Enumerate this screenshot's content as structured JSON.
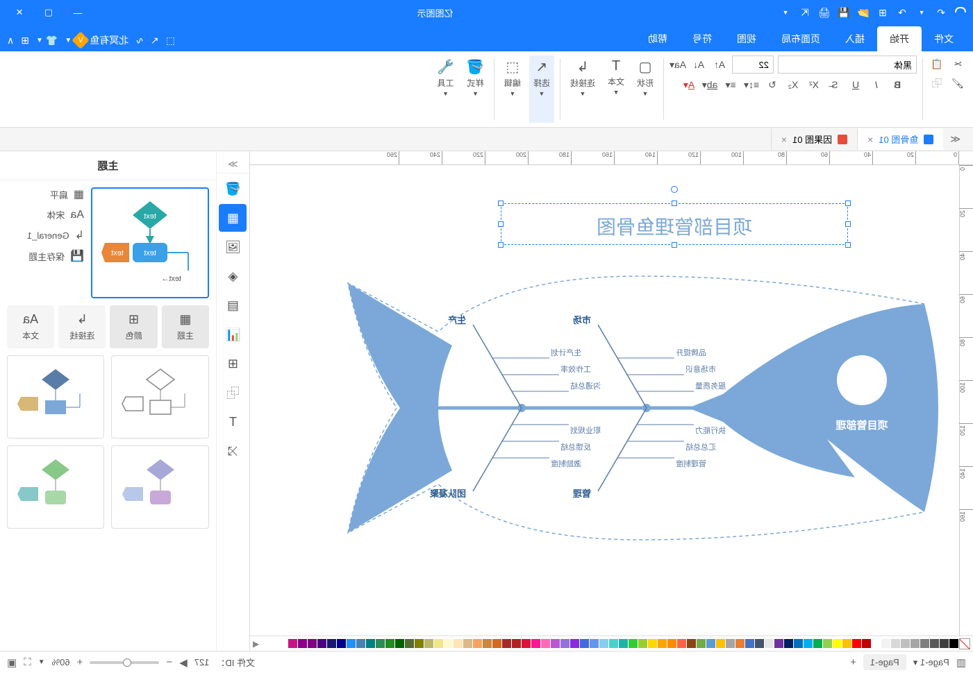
{
  "titlebar": {
    "app_title": "亿图图示",
    "icons": [
      "logo",
      "undo",
      "redo",
      "save",
      "open",
      "export",
      "print",
      "share",
      "dropdown"
    ]
  },
  "menubar": {
    "items": [
      "文件",
      "开始",
      "插入",
      "页面布局",
      "视图",
      "符号",
      "帮助"
    ],
    "active_index": 1,
    "right_label": "北冥有鱼",
    "badge": "V"
  },
  "ribbon": {
    "font_name": "黑体",
    "font_size": "22",
    "groups": {
      "shape": "形状",
      "text": "文本",
      "connector": "连接线",
      "select": "选择",
      "edit": "编辑",
      "fill": "样式",
      "tools": "工具"
    }
  },
  "doc_tabs": [
    {
      "label": "鱼骨图 01",
      "active": true,
      "icon": "blue"
    },
    {
      "label": "因果图 01",
      "active": false,
      "icon": "red"
    }
  ],
  "side_panel": {
    "title": "主题",
    "opts": [
      "扁平",
      "宋体",
      "General_1",
      "保存主题"
    ],
    "tabs": [
      "主题",
      "颜色",
      "连接线",
      "文本"
    ],
    "active_tab": 0
  },
  "diagram": {
    "title": "项目部管理鱼骨图",
    "head_label": "项目管部理",
    "branches": {
      "top_left": {
        "label": "生产",
        "items": [
          "生产计划",
          "工作效率",
          "沟通总结"
        ]
      },
      "top_right": {
        "label": "市场",
        "items": [
          "品牌提升",
          "市场意识",
          "服务质量"
        ]
      },
      "bottom_left": {
        "label": "团队凝聚",
        "items": [
          "职业规划",
          "反馈总结",
          "激励制度"
        ]
      },
      "bottom_right": {
        "label": "管理",
        "items": [
          "执行能力",
          "汇总总结",
          "管理制度"
        ]
      }
    },
    "colors": {
      "fish_fill": "#7ba8d8",
      "spine": "#7ba8d8",
      "text_main": "#2b5a8f",
      "text_item": "#5a7ca8",
      "selection": "#1a7cff"
    }
  },
  "statusbar": {
    "page_selector": "Page-1",
    "page_tab": "Page-1",
    "file_id_label": "文件 ID：",
    "file_id": "127",
    "zoom": "60%"
  },
  "ruler_h": [
    0,
    20,
    40,
    60,
    80,
    100,
    120,
    140,
    160,
    180,
    200,
    220,
    240,
    260
  ],
  "ruler_v": [
    0,
    20,
    40,
    60,
    80,
    100,
    120,
    140,
    160
  ],
  "palette_colors": [
    "#000000",
    "#3f3f3f",
    "#595959",
    "#7f7f7f",
    "#a5a5a5",
    "#bfbfbf",
    "#d8d8d8",
    "#f2f2f2",
    "#ffffff",
    "#c00000",
    "#ff0000",
    "#ffc000",
    "#ffff00",
    "#92d050",
    "#00b050",
    "#00b0f0",
    "#0070c0",
    "#002060",
    "#7030a0",
    "#e7e6e6",
    "#44546a",
    "#4472c4",
    "#ed7d31",
    "#a5a5a5",
    "#ffc000",
    "#5b9bd5",
    "#70ad47",
    "#8b4513",
    "#ff6347",
    "#ff8c00",
    "#ffa500",
    "#ffd700",
    "#9acd32",
    "#32cd32",
    "#20b2aa",
    "#48d1cc",
    "#87ceeb",
    "#6495ed",
    "#4169e1",
    "#8a2be2",
    "#9370db",
    "#ba55d3",
    "#ff69b4",
    "#ff1493",
    "#dc143c",
    "#b22222",
    "#a52a2a",
    "#d2691e",
    "#cd853f",
    "#f4a460",
    "#deb887",
    "#ffe4b5",
    "#fffacd",
    "#f0e68c",
    "#bdb76b",
    "#808000",
    "#556b2f",
    "#006400",
    "#228b22",
    "#2e8b57",
    "#008080",
    "#4682b4",
    "#1e90ff",
    "#00008b",
    "#191970",
    "#4b0082",
    "#800080",
    "#8b008b",
    "#c71585"
  ]
}
